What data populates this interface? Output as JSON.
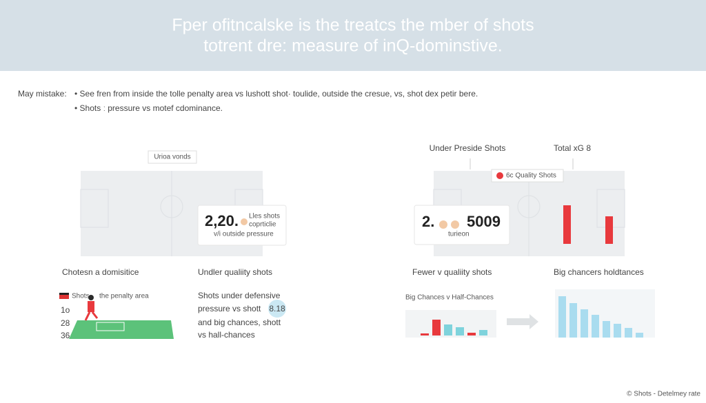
{
  "header": {
    "lines": [
      "Fper ofitncalske is the treatcs the mber of shots",
      "totrent dre: measure of inQ-dominstive."
    ]
  },
  "notes": {
    "label": "May mistake:",
    "items": [
      "See fren from inside the tolle penalty area vs lushott shot· toulide, outside the cresue, vs, shot dex petir bere.",
      "Shots ː pressure vs motef cdominance."
    ]
  },
  "left_panel": {
    "label": "Urioa vonds",
    "card": {
      "number": "2,20.",
      "caption_lines": [
        "Lles shots",
        "coprticlie"
      ],
      "subtitle": "v/i outside pressure"
    }
  },
  "right_panel": {
    "label": "Under Preside Shots",
    "total": "Total xG 8",
    "badge": "6c Quality Shots",
    "card": {
      "number": "2.",
      "number2": "5009",
      "subtitle": "turieon"
    }
  },
  "bottom": {
    "col1": {
      "title": "Chotesn a domisitice",
      "legend": "Shots",
      "legend2": "the penalty area",
      "rows": [
        "1o",
        "28",
        "36"
      ]
    },
    "col2": {
      "title": "Undler qualiity shots",
      "lines": [
        "Shots under defensive",
        "pressure  vs shott",
        "and big chances, shott",
        "vs hall-chances"
      ],
      "badge": "8.18"
    },
    "col3": {
      "title": "Fewer v qualiity shots",
      "chart_title": "Big Chances v Half-Chances"
    },
    "col4": {
      "title": "Big chancers holdtances"
    }
  },
  "charts": {
    "quality_bars": {
      "values": [
        56,
        40
      ],
      "color": "#e8393d"
    },
    "half_chances": {
      "values": [
        3,
        23,
        16,
        12,
        4,
        8
      ],
      "colors": [
        "#e8393d",
        "#e8393d",
        "#7fd3dc",
        "#7fd3dc",
        "#e8393d",
        "#7fd3dc"
      ]
    },
    "big_chances": {
      "values": [
        60,
        50,
        41,
        33,
        24,
        20,
        14,
        7
      ],
      "color": "#a9dcef"
    }
  },
  "footer": "© Shots - Detelmey rate"
}
